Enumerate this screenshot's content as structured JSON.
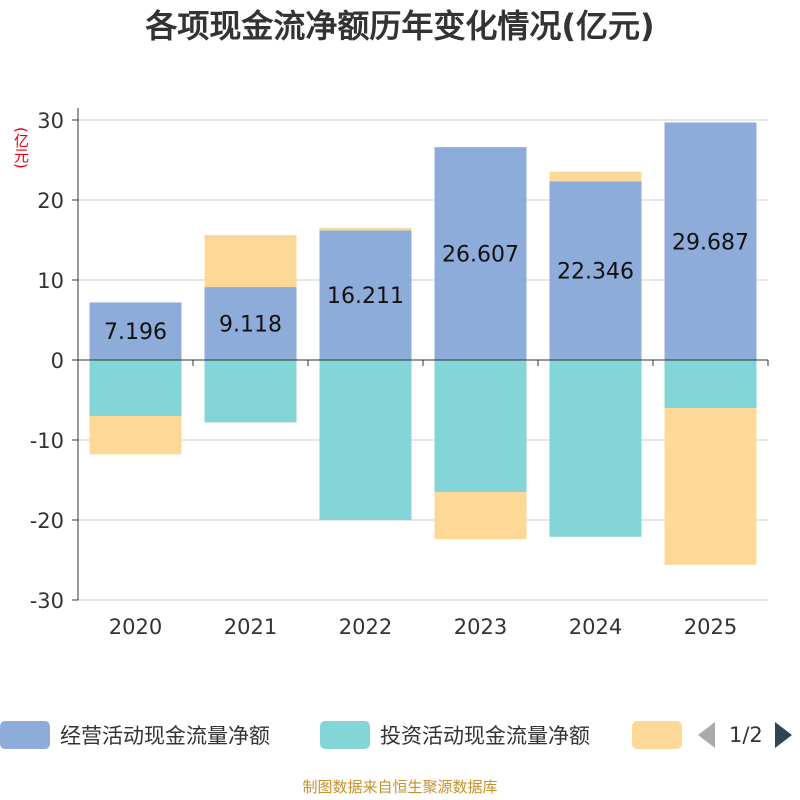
{
  "chart_data": {
    "type": "bar",
    "stacked": true,
    "title": "各项现金流净额历年变化情况(亿元)",
    "ylabel": "(亿元)",
    "ylim": [
      -30,
      30
    ],
    "yticks": [
      30,
      20,
      10,
      0,
      -10,
      -20,
      -30
    ],
    "categories": [
      "2020",
      "2021",
      "2022",
      "2023",
      "2024",
      "2025"
    ],
    "series": [
      {
        "name": "经营活动现金流量净额",
        "color": "#8eacda",
        "values": [
          7.196,
          9.118,
          16.211,
          26.607,
          22.346,
          29.687
        ],
        "labels": [
          "7.196",
          "9.118",
          "16.211",
          "26.607",
          "22.346",
          "29.687"
        ]
      },
      {
        "name": "投资活动现金流量净额",
        "color": "#84d5d7",
        "values": [
          -7.0,
          -7.8,
          -20.0,
          -16.5,
          -22.1,
          -6.0
        ]
      },
      {
        "name": "",
        "color": "#fed897",
        "values": [
          -4.8,
          6.5,
          0.3,
          -5.9,
          1.2,
          -19.6
        ]
      }
    ]
  },
  "legend": {
    "items": [
      {
        "label": "经营活动现金流量净额",
        "color": "#8eacda"
      },
      {
        "label": "投资活动现金流量净额",
        "color": "#84d5d7"
      },
      {
        "label": "",
        "color": "#fed897"
      }
    ],
    "page": "1/2"
  },
  "unit_label": "(亿元)",
  "source": "制图数据来自恒生聚源数据库"
}
